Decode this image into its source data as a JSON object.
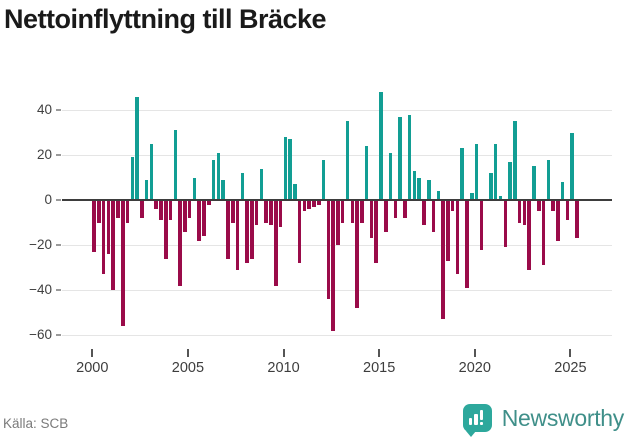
{
  "title": "Nettoinflyttning till Bräcke",
  "footer": {
    "source": "Källa: SCB"
  },
  "logo": {
    "text": "Newsworthy",
    "icon": "bar-chart-speech-bubble-icon"
  },
  "chart_data": {
    "type": "bar",
    "title": "Nettoinflyttning till Bräcke",
    "xlabel": "",
    "ylabel": "",
    "frequency": "quarterly",
    "start": "2000-Q1",
    "end": "2025-Q2",
    "x_tick_labels": [
      "2000",
      "2005",
      "2010",
      "2015",
      "2020",
      "2025"
    ],
    "y_ticks": [
      40,
      20,
      0,
      -20,
      -40,
      -60
    ],
    "ylim": [
      -66,
      51
    ],
    "grid": "horizontal",
    "legend": "none",
    "colors": {
      "positive": "#129E94",
      "negative": "#9A0B49",
      "gridline": "#E5E5E5",
      "zeroline": "#3D3D3D"
    },
    "series": [
      {
        "name": "Nettoinflyttning",
        "values": [
          -23,
          -10,
          -33,
          -24,
          -40,
          -8,
          -56,
          -10,
          19,
          46,
          -8,
          9,
          25,
          -4,
          -9,
          -26,
          -9,
          31,
          -38,
          -14,
          -8,
          10,
          -18,
          -16,
          -2,
          18,
          21,
          9,
          -26,
          -10,
          -31,
          12,
          -28,
          -26,
          -11,
          14,
          -10,
          -11,
          -38,
          -12,
          28,
          27,
          7,
          -28,
          -5,
          -4,
          -3,
          -2,
          18,
          -44,
          -58,
          -20,
          -10,
          35,
          -10,
          -48,
          -10,
          24,
          -17,
          -28,
          48,
          -14,
          21,
          -8,
          37,
          -8,
          38,
          13,
          10,
          -11,
          9,
          -14,
          4,
          -53,
          -27,
          -5,
          -33,
          23,
          -39,
          3,
          25,
          -22,
          0,
          12,
          25,
          2,
          -21,
          17,
          35,
          -10,
          -11,
          -31,
          15,
          -5,
          -29,
          18,
          -5,
          -18,
          8,
          -9,
          30,
          -17
        ]
      }
    ]
  }
}
